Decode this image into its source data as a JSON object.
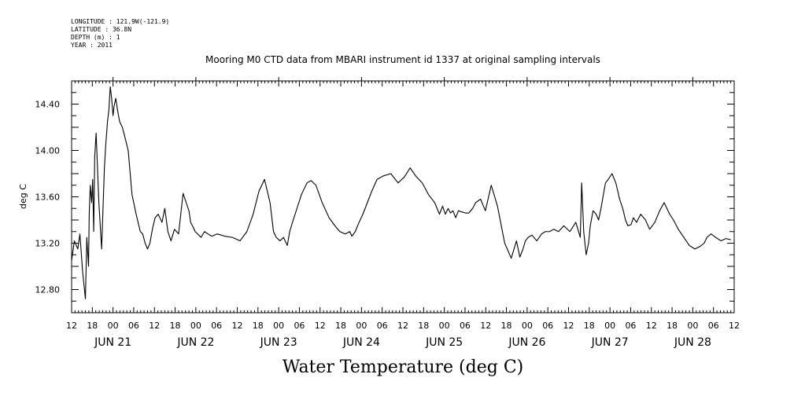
{
  "header_meta": {
    "longitude": "LONGITUDE : 121.9W(-121.9)",
    "latitude": "LATITUDE : 36.8N",
    "depth": "DEPTH (m) : 1",
    "year": "YEAR : 2011"
  },
  "chart_data": {
    "type": "line",
    "title": "Mooring M0 CTD data from MBARI instrument id 1337 at original sampling intervals",
    "xlabel": "Water Temperature (deg C)",
    "ylabel": "deg C",
    "ylim": [
      12.6,
      14.6
    ],
    "yticks": [
      "12.80",
      "13.20",
      "13.60",
      "14.00",
      "14.40"
    ],
    "x_units": "hours since JUN 21 00:00",
    "xlim": [
      -12,
      180
    ],
    "hour_ticks": [
      "12",
      "18",
      "00",
      "06",
      "12",
      "18",
      "00",
      "06",
      "12",
      "18",
      "00",
      "06",
      "12",
      "18",
      "00",
      "06",
      "12",
      "18",
      "00",
      "06",
      "12",
      "18",
      "00",
      "06",
      "12",
      "18",
      "00",
      "06",
      "12",
      "18",
      "00",
      "06",
      "12"
    ],
    "date_labels": [
      "JUN 21",
      "JUN 22",
      "JUN 23",
      "JUN 24",
      "JUN 25",
      "JUN 26",
      "JUN 27",
      "JUN 28"
    ],
    "grid": false,
    "series": [
      {
        "x": [
          -12.0,
          -11.2,
          -10.2,
          -9.6,
          -8.8,
          -8.0,
          -7.6,
          -7.1,
          -6.9,
          -6.6,
          -6.2,
          -5.9,
          -5.6,
          -5.3,
          -4.9,
          -4.5,
          -4.1,
          -3.7,
          -3.3,
          -2.9,
          -2.5,
          -2.1,
          -1.6,
          -1.2,
          -0.8,
          -0.4,
          0.0,
          0.3,
          0.8,
          1.3,
          1.9,
          2.7,
          3.4,
          4.4,
          5.5,
          6.7,
          7.9,
          8.6,
          9.3,
          10.0,
          10.7,
          11.4,
          12.2,
          13.1,
          14.2,
          15.0,
          15.9,
          16.8,
          17.8,
          19.0,
          20.3,
          21.2,
          22.0,
          22.5,
          23.2,
          23.8,
          24.5,
          25.5,
          26.5,
          27.5,
          28.6,
          30.2,
          32.4,
          34.6,
          36.8,
          38.8,
          40.6,
          42.3,
          43.9,
          45.5,
          46.5,
          47.3,
          48.4,
          49.4,
          50.5,
          51.2,
          52.0,
          53.3,
          54.6,
          56.2,
          57.4,
          58.8,
          60.6,
          62.6,
          64.3,
          65.7,
          67.3,
          68.6,
          69.2,
          70.2,
          71.3,
          72.4,
          73.7,
          75.0,
          76.5,
          78.3,
          80.5,
          82.6,
          84.4,
          86.1,
          87.7,
          89.6,
          91.4,
          93.2,
          94.6,
          95.5,
          96.3,
          97.1,
          97.8,
          98.5,
          99.3,
          100.1,
          101.0,
          102.2,
          103.1,
          104.2,
          105.1,
          106.5,
          107.9,
          109.6,
          111.4,
          113.5,
          115.4,
          116.9,
          117.9,
          118.8,
          119.5,
          120.3,
          121.4,
          122.8,
          124.2,
          125.3,
          126.5,
          127.7,
          129.1,
          130.6,
          132.4,
          134.1,
          135.4,
          135.8,
          136.4,
          137.1,
          137.8,
          138.3,
          139.1,
          140.0,
          140.7,
          141.4,
          142.1,
          142.7,
          143.5,
          144.6,
          145.7,
          146.8,
          147.7,
          148.5,
          149.2,
          150.1,
          150.8,
          151.7,
          152.9,
          154.3,
          155.5,
          157.0,
          158.4,
          159.7,
          160.5,
          161.3,
          162.4,
          163.8,
          165.4,
          167.0,
          168.6,
          170.0,
          171.3,
          172.1,
          173.3,
          174.6,
          176.2,
          177.6,
          179.0
        ],
        "y": [
          13.05,
          13.22,
          13.15,
          13.28,
          12.95,
          12.72,
          13.25,
          13.0,
          13.45,
          13.7,
          13.55,
          13.75,
          13.3,
          13.95,
          14.15,
          13.85,
          13.55,
          13.35,
          13.15,
          13.5,
          13.85,
          14.05,
          14.25,
          14.35,
          14.55,
          14.45,
          14.3,
          14.38,
          14.45,
          14.35,
          14.25,
          14.2,
          14.12,
          14.0,
          13.62,
          13.45,
          13.3,
          13.28,
          13.2,
          13.15,
          13.2,
          13.32,
          13.42,
          13.45,
          13.38,
          13.5,
          13.3,
          13.22,
          13.32,
          13.28,
          13.63,
          13.55,
          13.48,
          13.38,
          13.34,
          13.3,
          13.28,
          13.25,
          13.3,
          13.28,
          13.26,
          13.28,
          13.26,
          13.25,
          13.22,
          13.3,
          13.45,
          13.65,
          13.75,
          13.55,
          13.3,
          13.25,
          13.22,
          13.25,
          13.18,
          13.3,
          13.38,
          13.5,
          13.62,
          13.72,
          13.74,
          13.7,
          13.55,
          13.42,
          13.35,
          13.3,
          13.28,
          13.3,
          13.26,
          13.3,
          13.38,
          13.45,
          13.55,
          13.65,
          13.75,
          13.78,
          13.8,
          13.72,
          13.77,
          13.85,
          13.78,
          13.72,
          13.62,
          13.55,
          13.45,
          13.52,
          13.45,
          13.5,
          13.46,
          13.48,
          13.42,
          13.48,
          13.47,
          13.46,
          13.46,
          13.5,
          13.55,
          13.58,
          13.48,
          13.7,
          13.52,
          13.2,
          13.07,
          13.22,
          13.08,
          13.15,
          13.22,
          13.25,
          13.27,
          13.22,
          13.28,
          13.3,
          13.3,
          13.32,
          13.3,
          13.35,
          13.3,
          13.38,
          13.25,
          13.72,
          13.3,
          13.1,
          13.2,
          13.35,
          13.48,
          13.45,
          13.4,
          13.5,
          13.62,
          13.72,
          13.75,
          13.8,
          13.72,
          13.58,
          13.5,
          13.4,
          13.35,
          13.36,
          13.42,
          13.38,
          13.45,
          13.4,
          13.32,
          13.38,
          13.48,
          13.55,
          13.5,
          13.45,
          13.4,
          13.32,
          13.25,
          13.18,
          13.15,
          13.17,
          13.2,
          13.25,
          13.28,
          13.25,
          13.22,
          13.24,
          13.23
        ]
      }
    ]
  }
}
